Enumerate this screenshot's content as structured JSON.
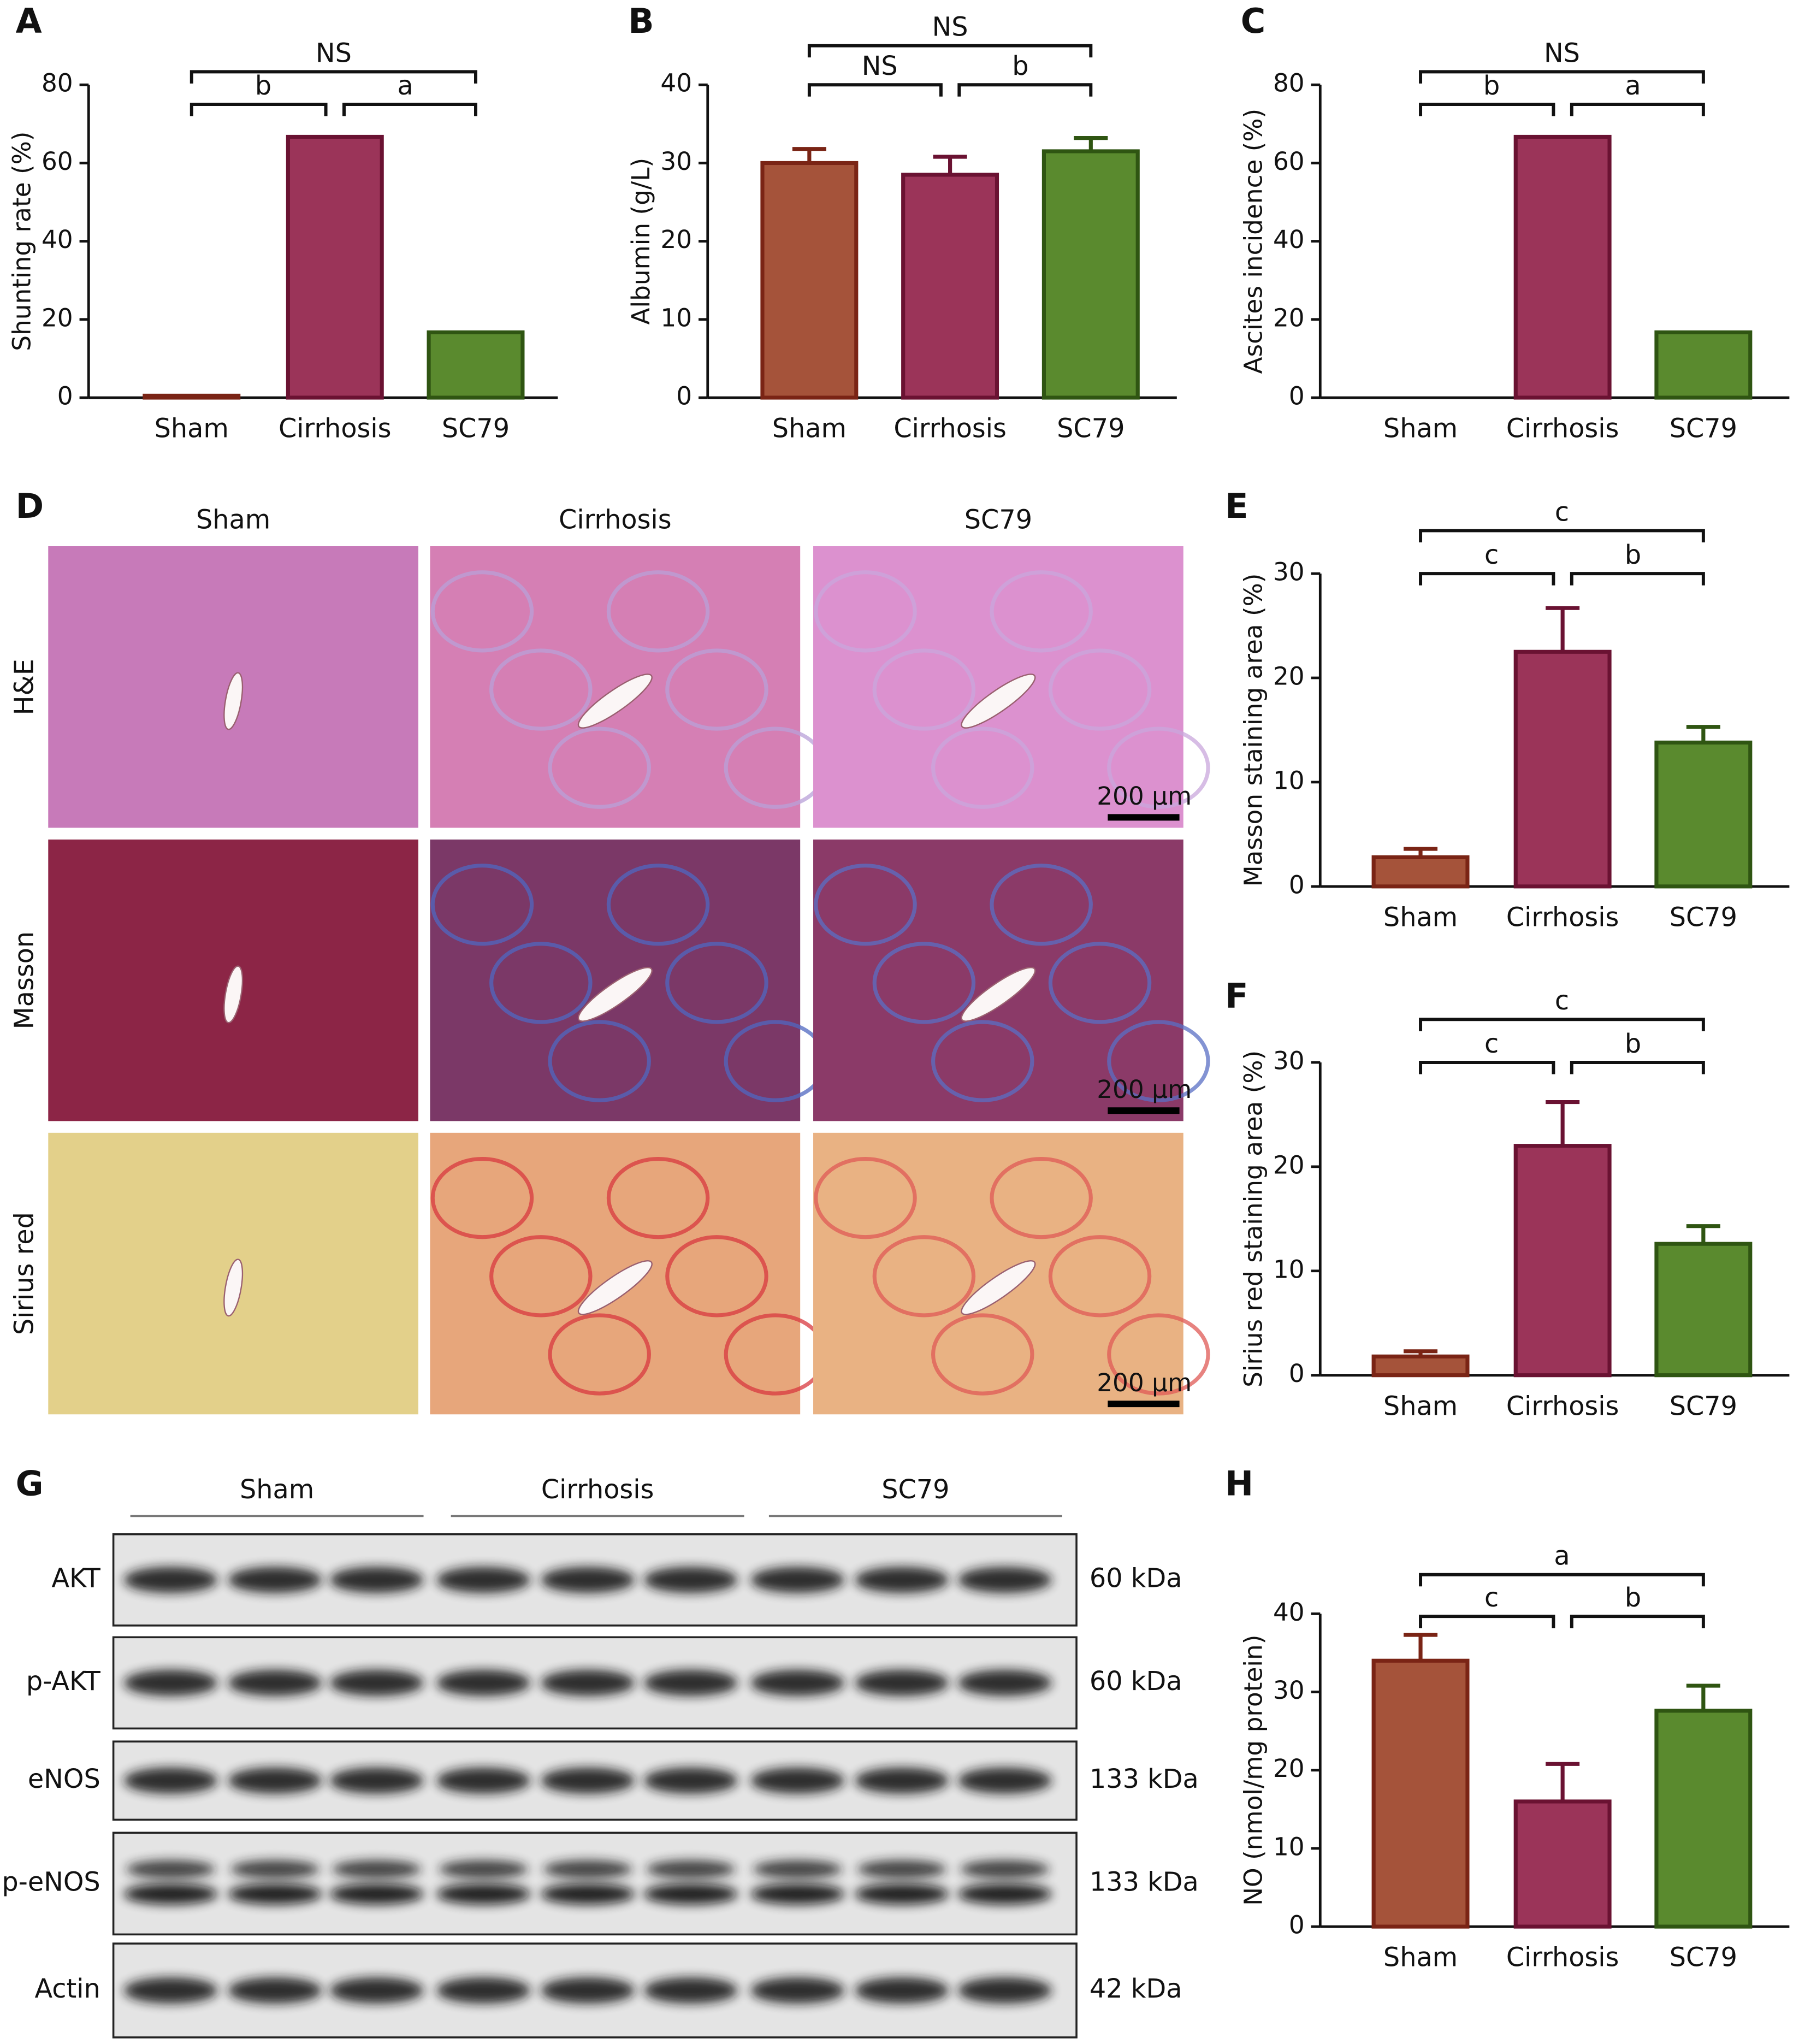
{
  "chart_data": [
    {
      "type": "bar",
      "label": "A",
      "y_label": "Shunting rate (%)",
      "categories": [
        "Sham",
        "Cirrhosis",
        "SC79"
      ],
      "values": [
        0.5,
        66.7,
        16.7
      ],
      "colors": [
        "#a5533a",
        "#9b3459",
        "#5a8a2e"
      ],
      "edge_colors": [
        "#7a2415",
        "#6a1232",
        "#2f5512"
      ],
      "ylim": [
        0,
        80
      ],
      "yticks": [
        0,
        20,
        40,
        60,
        80
      ],
      "brackets": [
        {
          "between": [
            0,
            1
          ],
          "label": "b"
        },
        {
          "between": [
            1,
            2
          ],
          "label": "a"
        },
        {
          "between": [
            0,
            2
          ],
          "label": "NS"
        }
      ]
    },
    {
      "type": "bar",
      "label": "B",
      "y_label": "Albumin (g/L)",
      "categories": [
        "Sham",
        "Cirrhosis",
        "SC79"
      ],
      "values": [
        30,
        28.5,
        31.5
      ],
      "errors": [
        1.8,
        2.3,
        1.7
      ],
      "colors": [
        "#a5533a",
        "#9b3459",
        "#5a8a2e"
      ],
      "edge_colors": [
        "#7a2415",
        "#6a1232",
        "#2f5512"
      ],
      "ylim": [
        0,
        40
      ],
      "yticks": [
        0,
        10,
        20,
        30,
        40
      ],
      "brackets": [
        {
          "between": [
            0,
            1
          ],
          "label": "NS"
        },
        {
          "between": [
            1,
            2
          ],
          "label": "b"
        },
        {
          "between": [
            0,
            2
          ],
          "label": "NS"
        }
      ]
    },
    {
      "type": "bar",
      "label": "C",
      "y_label": "Ascites incidence (%)",
      "categories": [
        "Sham",
        "Cirrhosis",
        "SC79"
      ],
      "values": [
        0,
        66.7,
        16.7
      ],
      "colors": [
        "#a5533a",
        "#9b3459",
        "#5a8a2e"
      ],
      "edge_colors": [
        "#7a2415",
        "#6a1232",
        "#2f5512"
      ],
      "ylim": [
        0,
        80
      ],
      "yticks": [
        0,
        20,
        40,
        60,
        80
      ],
      "brackets": [
        {
          "between": [
            0,
            1
          ],
          "label": "b"
        },
        {
          "between": [
            1,
            2
          ],
          "label": "a"
        },
        {
          "between": [
            0,
            2
          ],
          "label": "NS"
        }
      ]
    },
    {
      "type": "bar",
      "label": "E",
      "y_label": "Masson staining area (%)",
      "categories": [
        "Sham",
        "Cirrhosis",
        "SC79"
      ],
      "values": [
        2.8,
        22.5,
        13.8
      ],
      "errors": [
        0.8,
        4.2,
        1.5
      ],
      "colors": [
        "#a5533a",
        "#9b3459",
        "#5a8a2e"
      ],
      "edge_colors": [
        "#7a2415",
        "#6a1232",
        "#2f5512"
      ],
      "ylim": [
        0,
        30
      ],
      "yticks": [
        0,
        10,
        20,
        30
      ],
      "brackets": [
        {
          "between": [
            0,
            1
          ],
          "label": "c"
        },
        {
          "between": [
            1,
            2
          ],
          "label": "b"
        },
        {
          "between": [
            0,
            2
          ],
          "label": "c"
        }
      ]
    },
    {
      "type": "bar",
      "label": "F",
      "y_label": "Sirius red staining area (%)",
      "categories": [
        "Sham",
        "Cirrhosis",
        "SC79"
      ],
      "values": [
        1.8,
        22,
        12.6
      ],
      "errors": [
        0.5,
        4.2,
        1.7
      ],
      "colors": [
        "#a5533a",
        "#9b3459",
        "#5a8a2e"
      ],
      "edge_colors": [
        "#7a2415",
        "#6a1232",
        "#2f5512"
      ],
      "ylim": [
        0,
        30
      ],
      "yticks": [
        0,
        10,
        20,
        30
      ],
      "brackets": [
        {
          "between": [
            0,
            1
          ],
          "label": "c"
        },
        {
          "between": [
            1,
            2
          ],
          "label": "b"
        },
        {
          "between": [
            0,
            2
          ],
          "label": "c"
        }
      ]
    },
    {
      "type": "bar",
      "label": "H",
      "y_label": "NO (nmol/mg protein)",
      "categories": [
        "Sham",
        "Cirrhosis",
        "SC79"
      ],
      "values": [
        34,
        16,
        27.6
      ],
      "errors": [
        3.3,
        4.8,
        3.2
      ],
      "colors": [
        "#a5533a",
        "#9b3459",
        "#5a8a2e"
      ],
      "edge_colors": [
        "#7a2415",
        "#6a1232",
        "#2f5512"
      ],
      "ylim": [
        0,
        40
      ],
      "yticks": [
        0,
        10,
        20,
        30,
        40
      ],
      "brackets": [
        {
          "between": [
            0,
            1
          ],
          "label": "c"
        },
        {
          "between": [
            1,
            2
          ],
          "label": "b"
        },
        {
          "between": [
            0,
            2
          ],
          "label": "a"
        }
      ]
    }
  ],
  "histology": {
    "label": "D",
    "columns": [
      "Sham",
      "Cirrhosis",
      "SC79"
    ],
    "rows": [
      "H&E",
      "Masson",
      "Sirius red"
    ],
    "scale_bar": "200 µm"
  },
  "western_blot": {
    "label": "G",
    "groups": [
      "Sham",
      "Cirrhosis",
      "SC79"
    ],
    "rows": [
      {
        "name": "AKT",
        "size": "60 kDa"
      },
      {
        "name": "p-AKT",
        "size": "60 kDa"
      },
      {
        "name": "eNOS",
        "size": "133 kDa"
      },
      {
        "name": "p-eNOS",
        "size": "133 kDa"
      },
      {
        "name": "Actin",
        "size": "42 kDa"
      }
    ]
  }
}
